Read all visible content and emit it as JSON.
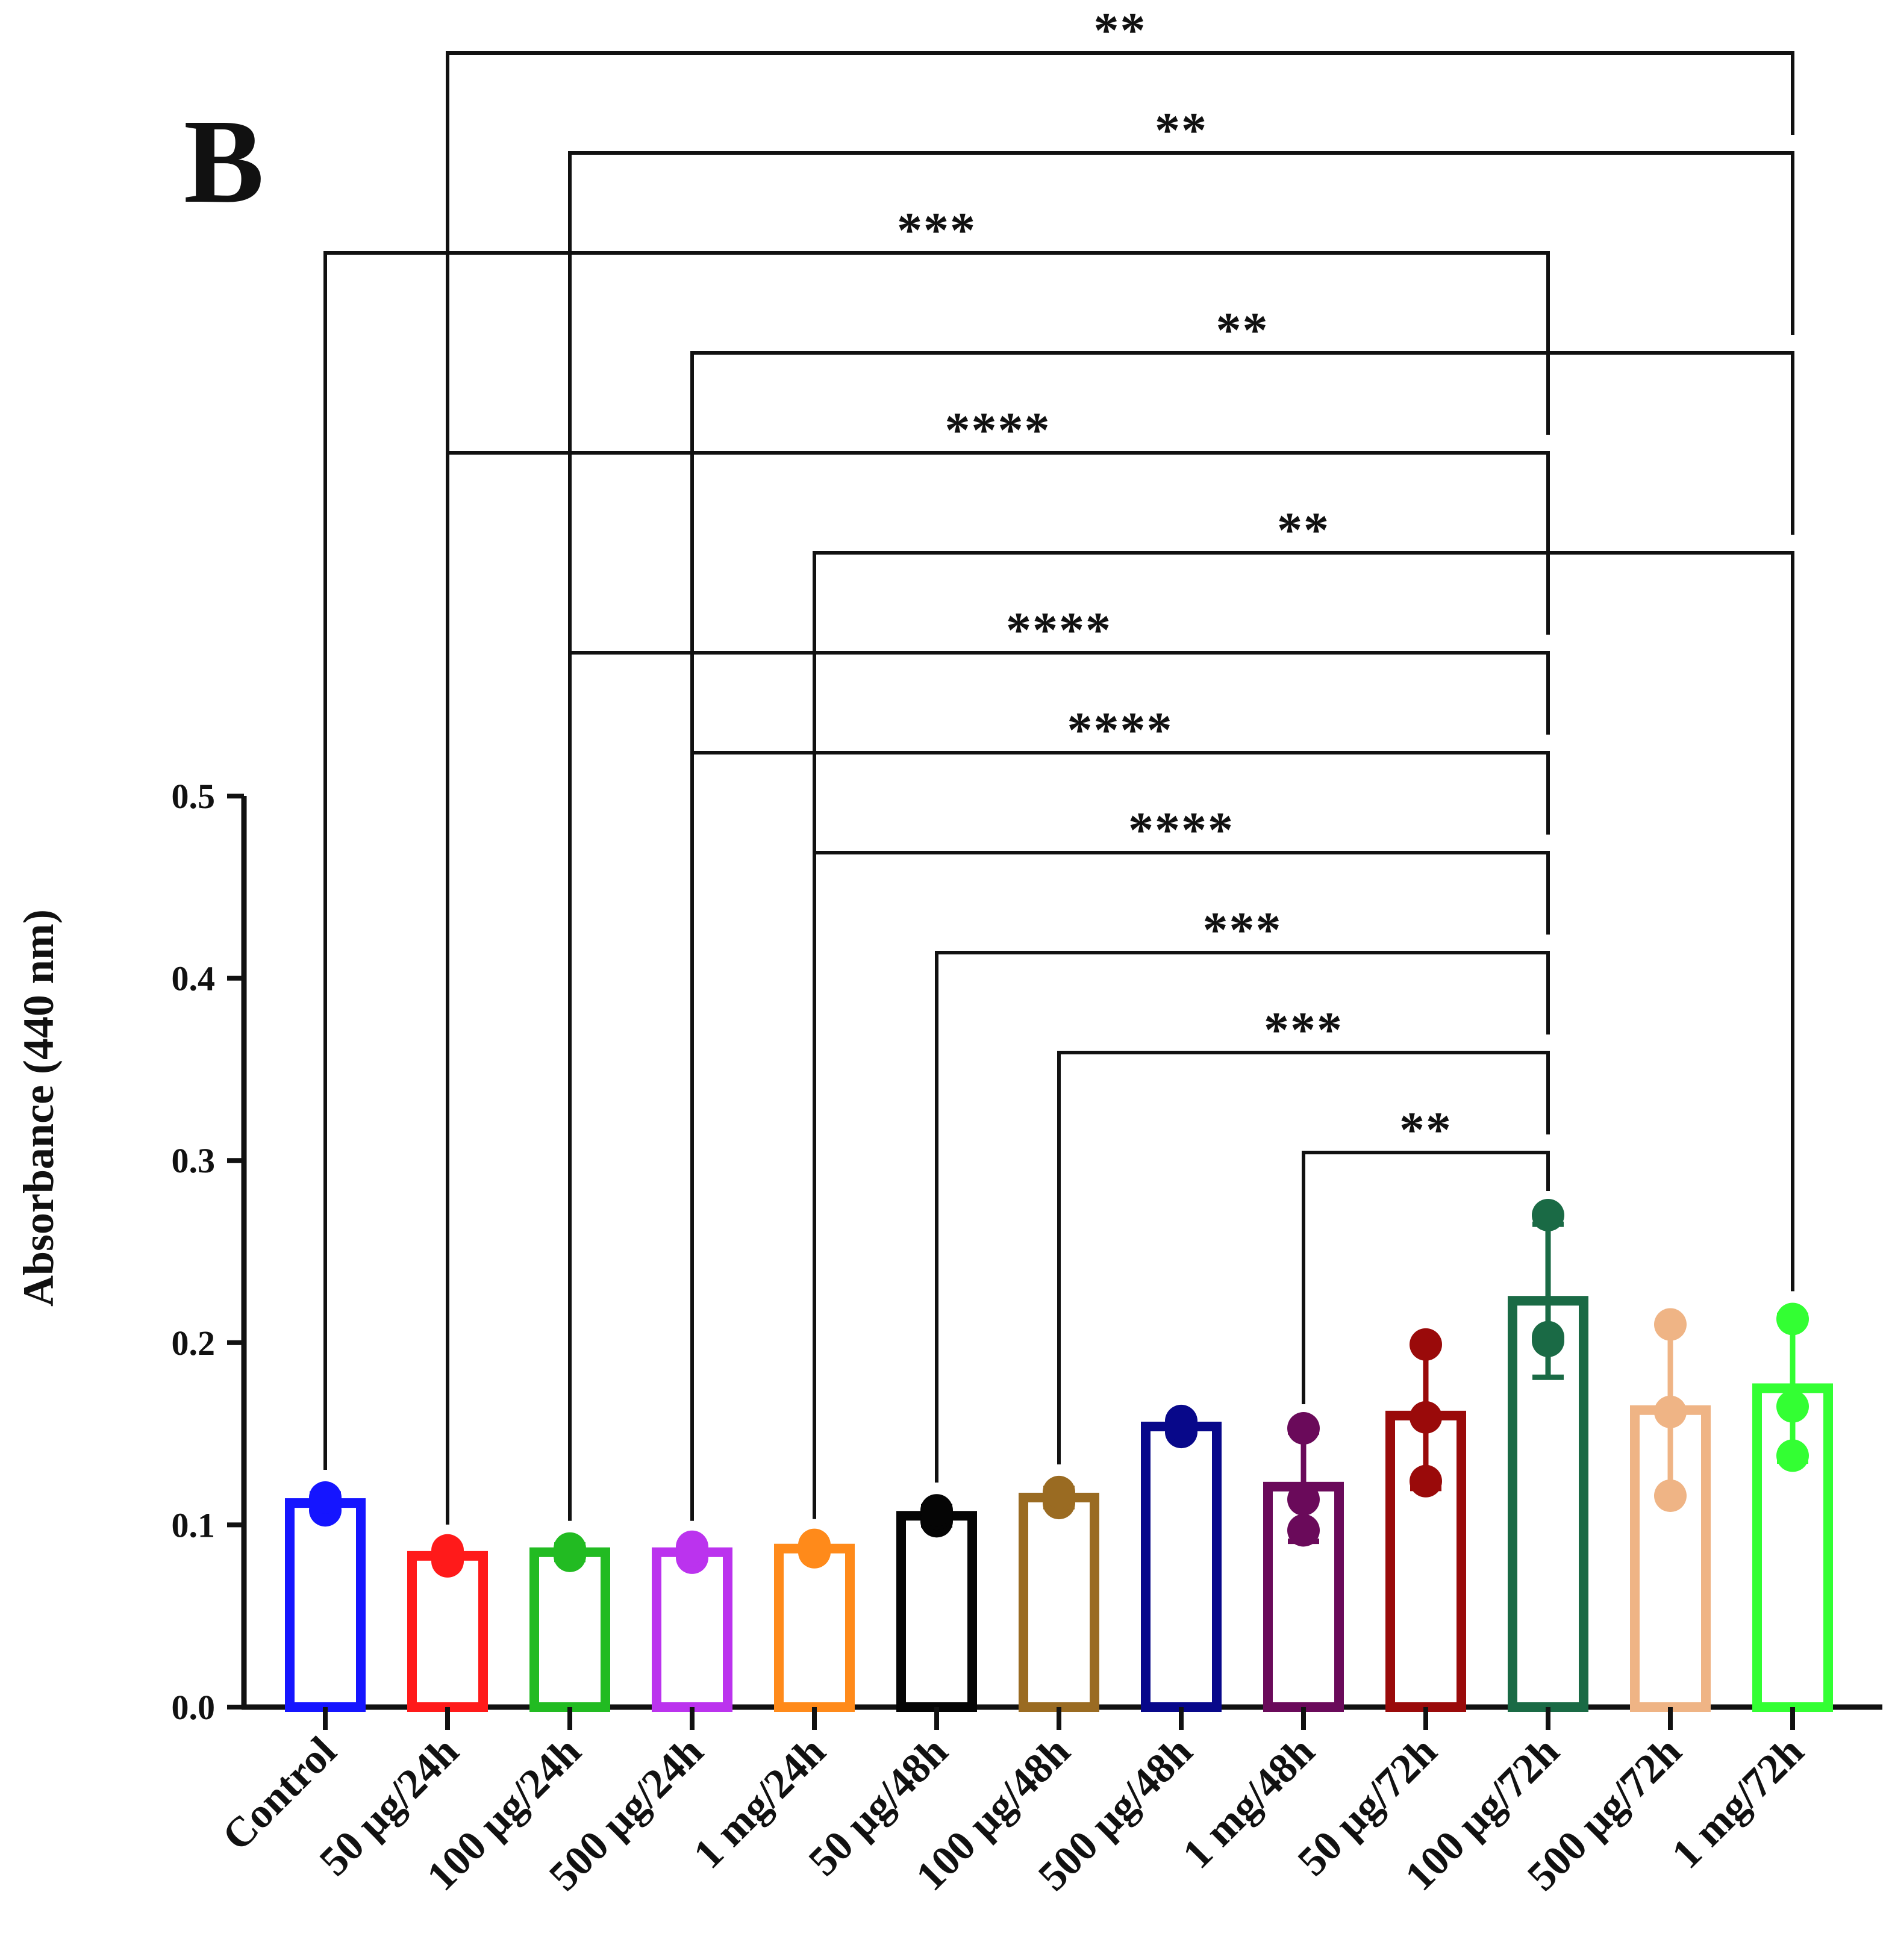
{
  "panel_label": "B",
  "chart_data": {
    "type": "bar",
    "title": "",
    "xlabel": "",
    "ylabel": "Absorbance (440 nm)",
    "ylim": [
      0,
      0.5
    ],
    "yticks": [
      0.0,
      0.1,
      0.2,
      0.3,
      0.4,
      0.5
    ],
    "ytick_labels": [
      "0.0",
      "0.1",
      "0.2",
      "0.3",
      "0.4",
      "0.5"
    ],
    "grid": false,
    "bar_style": "outlined",
    "categories": [
      "Control",
      "50 µg/24h",
      "100 µg/24h",
      "500 µg/24h",
      "1 mg/24h",
      "50 µg/48h",
      "100 µg/48h",
      "500 µg/48h",
      "1 mg/48h",
      "50 µg/72h",
      "100 µg/72h",
      "500 µg/72h",
      "1 mg/72h"
    ],
    "values": [
      0.112,
      0.083,
      0.085,
      0.085,
      0.087,
      0.105,
      0.115,
      0.154,
      0.121,
      0.16,
      0.223,
      0.163,
      0.175
    ],
    "errors": [
      0.005,
      0.004,
      0.004,
      0.004,
      0.003,
      0.005,
      0.005,
      0.004,
      0.03,
      0.04,
      0.042,
      0.048,
      0.04
    ],
    "points": [
      [
        0.108,
        0.113,
        0.115
      ],
      [
        0.08,
        0.083,
        0.086
      ],
      [
        0.083,
        0.085,
        0.087
      ],
      [
        0.082,
        0.086,
        0.088
      ],
      [
        0.085,
        0.087,
        0.089
      ],
      [
        0.102,
        0.106,
        0.108
      ],
      [
        0.112,
        0.116,
        0.118
      ],
      [
        0.151,
        0.155,
        0.157
      ],
      [
        0.097,
        0.114,
        0.153
      ],
      [
        0.124,
        0.159,
        0.199
      ],
      [
        0.201,
        0.203,
        0.27
      ],
      [
        0.116,
        0.162,
        0.21
      ],
      [
        0.138,
        0.165,
        0.213
      ]
    ],
    "colors": [
      "#1515ff",
      "#ff1a1a",
      "#22bb22",
      "#bb33ee",
      "#ff8a1a",
      "#050505",
      "#9a6b22",
      "#08088a",
      "#6a0a5a",
      "#9a0a0a",
      "#1a6a45",
      "#efb485",
      "#33ff33"
    ],
    "significance": [
      {
        "from": 1,
        "to": 12,
        "label": "**"
      },
      {
        "from": 2,
        "to": 12,
        "label": "**"
      },
      {
        "from": 0,
        "to": 10,
        "label": "***"
      },
      {
        "from": 3,
        "to": 12,
        "label": "**"
      },
      {
        "from": 1,
        "to": 10,
        "label": "****"
      },
      {
        "from": 4,
        "to": 12,
        "label": "**"
      },
      {
        "from": 2,
        "to": 10,
        "label": "****"
      },
      {
        "from": 3,
        "to": 10,
        "label": "****"
      },
      {
        "from": 4,
        "to": 10,
        "label": "****"
      },
      {
        "from": 5,
        "to": 10,
        "label": "***"
      },
      {
        "from": 6,
        "to": 10,
        "label": "***"
      },
      {
        "from": 8,
        "to": 10,
        "label": "**"
      }
    ]
  }
}
